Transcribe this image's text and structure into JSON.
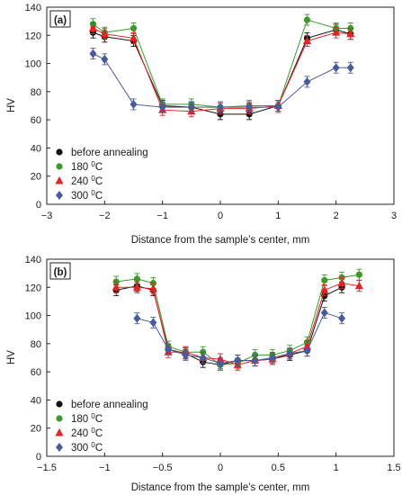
{
  "chart_data": [
    {
      "type": "line",
      "panel_label": "(a)",
      "xlabel": "Distance from the sample’s center, mm",
      "ylabel": "HV",
      "xlim": [
        -3,
        3
      ],
      "ylim": [
        0,
        140
      ],
      "xticks": [
        -3,
        -2,
        -1,
        0,
        1,
        2,
        3
      ],
      "yticks": [
        0,
        20,
        40,
        60,
        80,
        100,
        120,
        140
      ],
      "xtick_labels": [
        "−3",
        "−2",
        "−1",
        "0",
        "1",
        "2",
        "3"
      ],
      "ytick_labels": [
        "0",
        "20",
        "40",
        "60",
        "80",
        "100",
        "120",
        "140"
      ],
      "grid": false,
      "legend_position": "bottom-left",
      "series": [
        {
          "name": "before annealing",
          "name_sup": "",
          "name_tail": "",
          "color": "#111111",
          "marker": "circle",
          "x": [
            -2.2,
            -2,
            -1.5,
            -1,
            -0.5,
            0,
            0.5,
            1,
            1.5,
            2,
            2.25
          ],
          "y": [
            122,
            119,
            116,
            70,
            69,
            64,
            64,
            70,
            118,
            124,
            121
          ]
        },
        {
          "name": "180 ",
          "name_sup": "0",
          "name_tail": "C",
          "color": "#3a9a2a",
          "marker": "circle",
          "x": [
            -2.2,
            -2,
            -1.5,
            -1,
            -0.5,
            0,
            0.5,
            1,
            1.5,
            2,
            2.25
          ],
          "y": [
            128,
            122,
            125,
            71,
            71,
            69,
            70,
            70,
            131,
            125,
            125
          ]
        },
        {
          "name": "240 ",
          "name_sup": "0",
          "name_tail": "C",
          "color": "#e32424",
          "marker": "triangle",
          "x": [
            -2.2,
            -2,
            -1.5,
            -1,
            -0.5,
            0,
            0.5,
            1,
            1.5,
            2,
            2.25
          ],
          "y": [
            125,
            121,
            118,
            67,
            66,
            68,
            68,
            70,
            116,
            122,
            121
          ]
        },
        {
          "name": "300 ",
          "name_sup": "0",
          "name_tail": "C",
          "color": "#4a5a9a",
          "marker": "diamond",
          "x": [
            -2.2,
            -2,
            -1.5,
            -1,
            -0.5,
            0,
            0.5,
            1,
            1.5,
            2,
            2.25
          ],
          "y": [
            107,
            103,
            71,
            69,
            69,
            69,
            69,
            69,
            87,
            97,
            97
          ]
        }
      ]
    },
    {
      "type": "line",
      "panel_label": "(b)",
      "xlabel": "Distance from the sample’s center, mm",
      "ylabel": "HV",
      "xlim": [
        -1.5,
        1.5
      ],
      "ylim": [
        0,
        140
      ],
      "xticks": [
        -1.5,
        -1,
        -0.5,
        0,
        0.5,
        1,
        1.5
      ],
      "yticks": [
        0,
        20,
        40,
        60,
        80,
        100,
        120,
        140
      ],
      "xtick_labels": [
        "−1.5",
        "−1",
        "−0.5",
        "0",
        "0.5",
        "1",
        "1.5"
      ],
      "ytick_labels": [
        "0",
        "20",
        "40",
        "60",
        "80",
        "100",
        "120",
        "140"
      ],
      "grid": false,
      "legend_position": "bottom-left",
      "series": [
        {
          "name": "before annealing",
          "name_sup": "",
          "name_tail": "",
          "color": "#111111",
          "marker": "circle",
          "x": [
            -0.9,
            -0.72,
            -0.58,
            -0.45,
            -0.3,
            -0.15,
            0,
            0.15,
            0.3,
            0.45,
            0.6,
            0.75,
            0.9,
            1.05
          ],
          "y": [
            118,
            121,
            118,
            76,
            73,
            67,
            65,
            68,
            68,
            69,
            72,
            75,
            114,
            120
          ]
        },
        {
          "name": "180 ",
          "name_sup": "0",
          "name_tail": "C",
          "color": "#3a9a2a",
          "marker": "circle",
          "x": [
            -0.9,
            -0.72,
            -0.58,
            -0.45,
            -0.3,
            -0.15,
            0,
            0.15,
            0.3,
            0.45,
            0.6,
            0.75,
            0.9,
            1.05,
            1.2
          ],
          "y": [
            124,
            126,
            123,
            78,
            74,
            74,
            65,
            66,
            72,
            72,
            75,
            81,
            125,
            127,
            129
          ]
        },
        {
          "name": "240 ",
          "name_sup": "0",
          "name_tail": "C",
          "color": "#e32424",
          "marker": "triangle",
          "x": [
            -0.9,
            -0.72,
            -0.58,
            -0.45,
            -0.3,
            -0.15,
            0,
            0.15,
            0.3,
            0.45,
            0.6,
            0.75,
            0.9,
            1.05,
            1.2
          ],
          "y": [
            120,
            120,
            119,
            74,
            74,
            70,
            69,
            65,
            68,
            69,
            73,
            78,
            118,
            123,
            121
          ]
        },
        {
          "name": "300 ",
          "name_sup": "0",
          "name_tail": "C",
          "color": "#4a5a9a",
          "marker": "diamond",
          "x": [
            -0.72,
            -0.58,
            -0.45,
            -0.3,
            -0.15,
            0,
            0.15,
            0.3,
            0.45,
            0.6,
            0.75,
            0.9,
            1.05
          ],
          "y": [
            98,
            95,
            76,
            72,
            70,
            66,
            68,
            68,
            70,
            73,
            75,
            102,
            98
          ]
        }
      ]
    }
  ]
}
